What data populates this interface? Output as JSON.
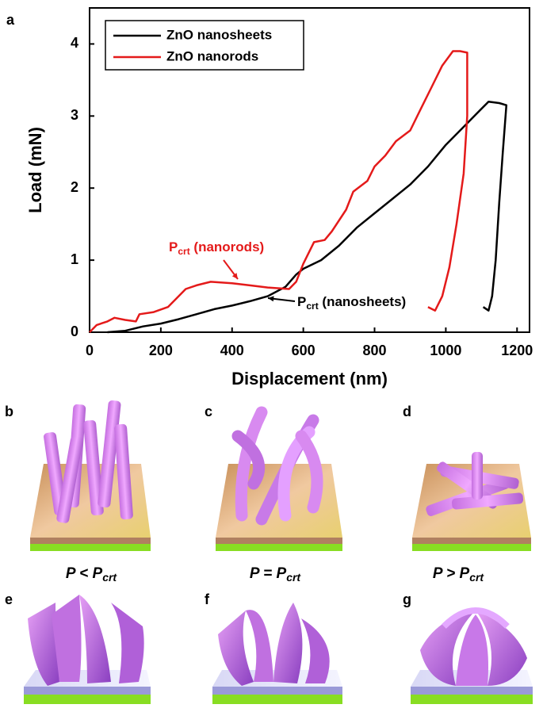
{
  "chart_data": {
    "type": "line",
    "panel_label": "a",
    "xlabel": "Displacement (nm)",
    "ylabel": "Load (mN)",
    "xlim": [
      0,
      1235
    ],
    "ylim": [
      0,
      4.5
    ],
    "xticks": [
      0,
      200,
      400,
      600,
      800,
      1000,
      1200
    ],
    "yticks": [
      0,
      1,
      2,
      3,
      4
    ],
    "legend": "upper left",
    "series": [
      {
        "name": "ZnO nanosheets",
        "color": "#000000",
        "x": [
          50,
          100,
          150,
          200,
          250,
          300,
          350,
          400,
          450,
          500,
          550,
          580,
          600,
          650,
          700,
          750,
          800,
          850,
          900,
          950,
          1000,
          1050,
          1100,
          1120,
          1150,
          1170,
          1160,
          1150,
          1140,
          1130,
          1120,
          1105
        ],
        "values": [
          0,
          0.02,
          0.08,
          0.12,
          0.18,
          0.25,
          0.32,
          0.37,
          0.43,
          0.5,
          0.63,
          0.8,
          0.88,
          1.0,
          1.2,
          1.45,
          1.65,
          1.85,
          2.05,
          2.3,
          2.6,
          2.85,
          3.1,
          3.2,
          3.18,
          3.15,
          2.5,
          1.8,
          1.0,
          0.5,
          0.3,
          0.35
        ]
      },
      {
        "name": "ZnO nanorods",
        "color": "#e41a1a",
        "x": [
          0,
          20,
          50,
          70,
          100,
          130,
          140,
          180,
          220,
          240,
          270,
          300,
          340,
          400,
          450,
          500,
          560,
          580,
          600,
          630,
          660,
          680,
          720,
          740,
          780,
          800,
          830,
          860,
          900,
          930,
          960,
          990,
          1020,
          1040,
          1060,
          1060,
          1050,
          1030,
          1010,
          990,
          970,
          950
        ],
        "values": [
          0,
          0.1,
          0.15,
          0.2,
          0.17,
          0.15,
          0.25,
          0.28,
          0.35,
          0.45,
          0.6,
          0.65,
          0.7,
          0.68,
          0.65,
          0.62,
          0.6,
          0.7,
          0.95,
          1.25,
          1.28,
          1.4,
          1.7,
          1.95,
          2.1,
          2.3,
          2.45,
          2.65,
          2.8,
          3.1,
          3.4,
          3.7,
          3.9,
          3.9,
          3.88,
          3.0,
          2.2,
          1.5,
          0.9,
          0.5,
          0.3,
          0.35
        ]
      }
    ],
    "annotations": [
      {
        "main": "P",
        "sub": "crt",
        "rest": " (nanorods)",
        "color": "#e41a1a"
      },
      {
        "main": "P",
        "sub": "crt",
        "rest": " (nanosheets)",
        "color": "#000000"
      }
    ]
  },
  "panels": [
    "b",
    "c",
    "d",
    "e",
    "f",
    "g"
  ],
  "conditions": [
    {
      "text": "P < P",
      "sub": "crt"
    },
    {
      "text": "P = P",
      "sub": "crt"
    },
    {
      "text": "P > P",
      "sub": "crt"
    }
  ]
}
